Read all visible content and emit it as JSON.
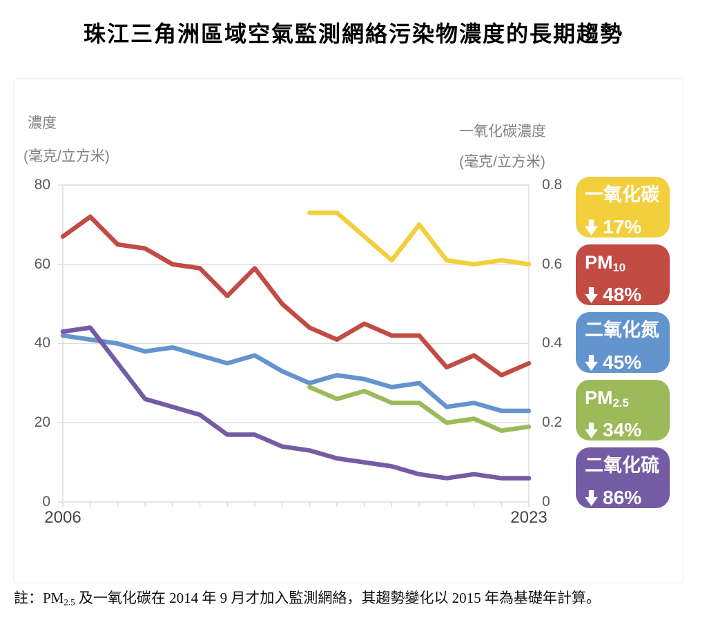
{
  "title": "珠江三角洲區域空氣監測網絡污染物濃度的長期趨勢",
  "left_axis": {
    "label_line1": "濃度",
    "label_line2": "(毫克/立方米)",
    "ticks": [
      "80",
      "60",
      "40",
      "20",
      "0"
    ]
  },
  "right_axis": {
    "label_line1": "一氧化碳濃度",
    "label_line2": "(毫克/立方米)",
    "ticks": [
      "0.8",
      "0.6",
      "0.4",
      "0.2",
      "0"
    ]
  },
  "x_axis": {
    "start_label": "2006",
    "end_label": "2023"
  },
  "legend": {
    "items": [
      {
        "base": "一氧化碳",
        "sub": "",
        "change": "17%",
        "color": "#F2CF3C"
      },
      {
        "base": "PM",
        "sub": "10",
        "change": "48%",
        "color": "#C24B44"
      },
      {
        "base": "二氧化氮",
        "sub": "",
        "change": "45%",
        "color": "#6494CE"
      },
      {
        "base": "PM",
        "sub": "2.5",
        "change": "34%",
        "color": "#9CBA5A"
      },
      {
        "base": "二氧化硫",
        "sub": "",
        "change": "86%",
        "color": "#745CA5"
      }
    ]
  },
  "note": {
    "pre": "註：PM",
    "sub": "2.5",
    "post": " 及一氧化碳在 2014 年 9 月才加入監測網絡，其趨勢變化以 2015 年為基礎年計算。"
  },
  "chart_data": {
    "type": "line",
    "x_start": 2006,
    "x_end": 2023,
    "xlabel": "",
    "ylabel_left": "濃度 (毫克/立方米)",
    "ylabel_right": "一氧化碳濃度 (毫克/立方米)",
    "ylim_left": [
      0,
      80
    ],
    "ylim_right": [
      0,
      0.8
    ],
    "grid": true,
    "legend_position": "right",
    "draw_order": [
      1,
      2,
      4,
      3,
      0
    ],
    "series": [
      {
        "name": "一氧化碳",
        "axis": "right",
        "color": "#F2CF3C",
        "start_year": 2015,
        "values": [
          0.73,
          0.73,
          0.67,
          0.61,
          0.7,
          0.61,
          0.6,
          0.61,
          0.6
        ]
      },
      {
        "name": "PM10",
        "axis": "left",
        "color": "#C24B44",
        "start_year": 2006,
        "values": [
          67,
          72,
          65,
          64,
          60,
          59,
          52,
          59,
          50,
          44,
          41,
          45,
          42,
          42,
          34,
          37,
          32,
          35
        ]
      },
      {
        "name": "二氧化氮",
        "axis": "left",
        "color": "#6494CE",
        "start_year": 2006,
        "values": [
          42,
          41,
          40,
          38,
          39,
          37,
          35,
          37,
          33,
          30,
          32,
          31,
          29,
          30,
          24,
          25,
          23,
          23
        ]
      },
      {
        "name": "PM2.5",
        "axis": "left",
        "color": "#9CBA5A",
        "start_year": 2015,
        "values": [
          29,
          26,
          28,
          25,
          25,
          20,
          21,
          18,
          19
        ]
      },
      {
        "name": "二氧化硫",
        "axis": "left",
        "color": "#745CA5",
        "start_year": 2006,
        "values": [
          43,
          44,
          35,
          26,
          24,
          22,
          17,
          17,
          14,
          13,
          11,
          10,
          9,
          7,
          6,
          7,
          6,
          6
        ]
      }
    ]
  }
}
